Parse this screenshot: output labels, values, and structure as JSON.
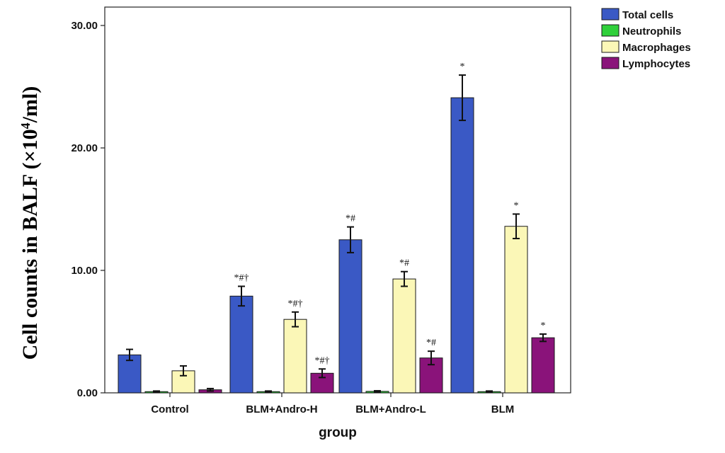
{
  "chart_data": {
    "type": "bar",
    "ylabel_main": "Cell counts in BALF (×10",
    "ylabel_sup": "4",
    "ylabel_tail": "/ml)",
    "xlabel": "group",
    "ylim": [
      0,
      30
    ],
    "y_ticks": [
      "0.00",
      "10.00",
      "20.00",
      "30.00"
    ],
    "y_tick_values": [
      0,
      10,
      20,
      30
    ],
    "categories": [
      "Control",
      "BLM+Andro-H",
      "BLM+Andro-L",
      "BLM"
    ],
    "legend_position": "top-right outside plot",
    "grid": false,
    "series": [
      {
        "name": "Total cells",
        "color": "#3a59c5",
        "values": [
          3.1,
          7.9,
          12.5,
          24.1
        ],
        "error": [
          0.45,
          0.8,
          1.05,
          1.85
        ],
        "annotations": [
          "",
          "*#†",
          "*#",
          "*"
        ]
      },
      {
        "name": "Neutrophils",
        "color": "#2fd03a",
        "values": [
          0.1,
          0.1,
          0.12,
          0.1
        ],
        "error": [
          0.05,
          0.05,
          0.05,
          0.05
        ],
        "annotations": [
          "",
          "",
          "",
          ""
        ]
      },
      {
        "name": "Macrophages",
        "color": "#fbf7b7",
        "values": [
          1.8,
          6.0,
          9.3,
          13.6
        ],
        "error": [
          0.4,
          0.6,
          0.6,
          1.0
        ],
        "annotations": [
          "",
          "*#†",
          "*#",
          "*"
        ]
      },
      {
        "name": "Lymphocytes",
        "color": "#8a137a",
        "values": [
          0.25,
          1.6,
          2.85,
          4.5
        ],
        "error": [
          0.1,
          0.35,
          0.55,
          0.3
        ],
        "annotations": [
          "",
          "*#†",
          "*#",
          "*"
        ]
      }
    ]
  }
}
